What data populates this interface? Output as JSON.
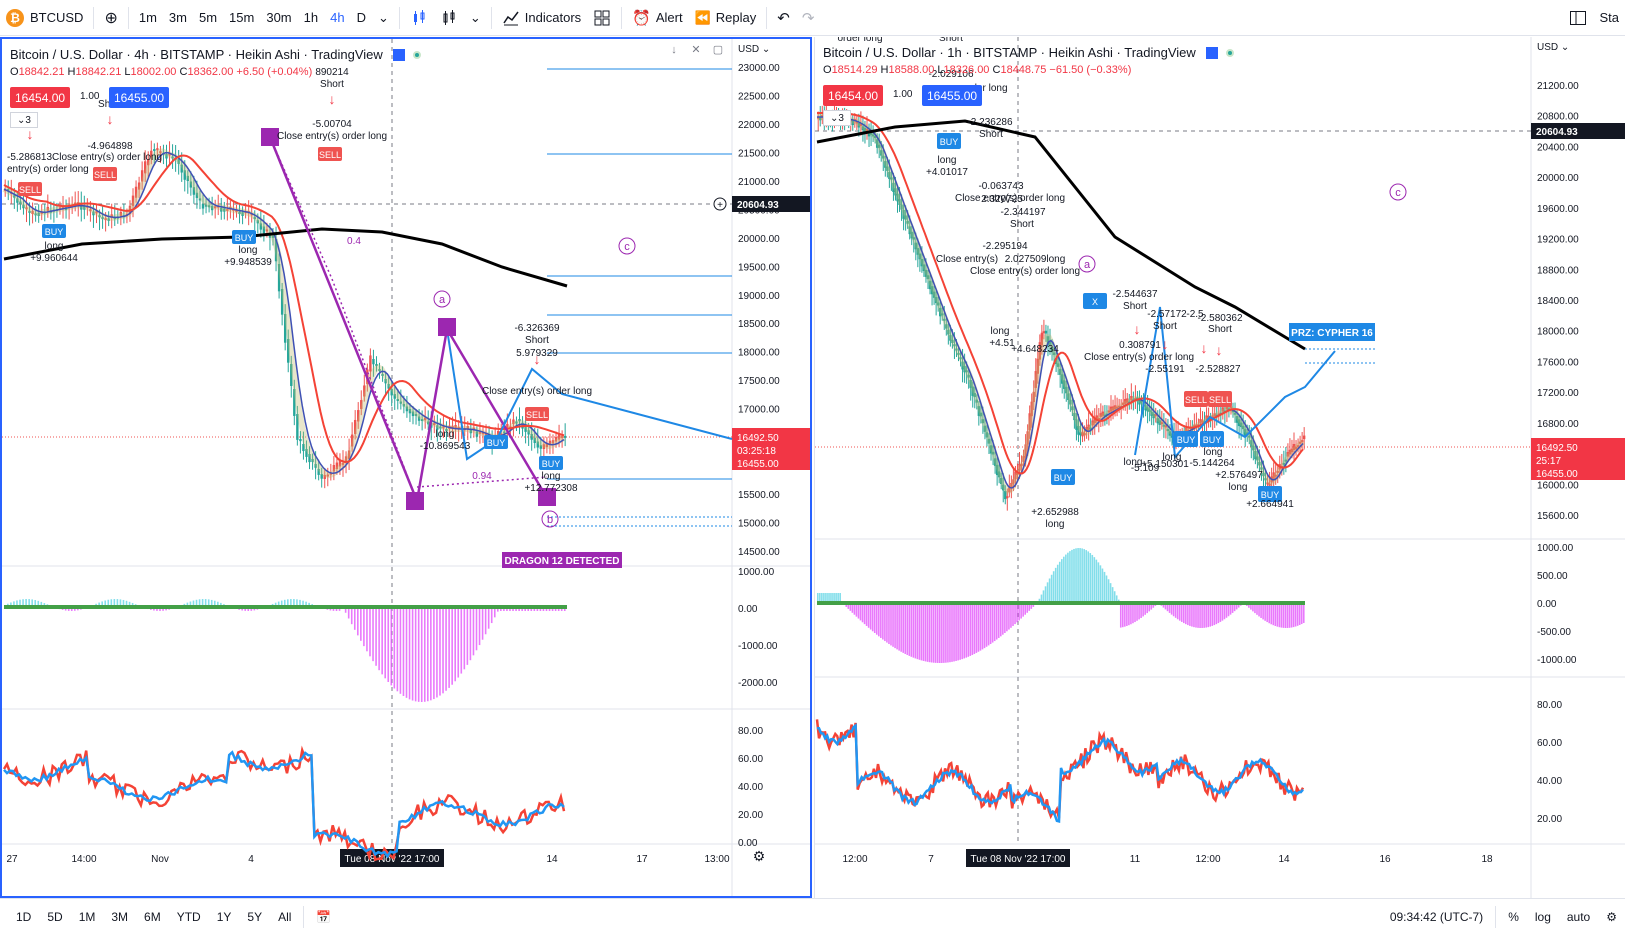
{
  "toolbar": {
    "symbol": "BTCUSD",
    "intervals": [
      "1m",
      "3m",
      "5m",
      "15m",
      "30m",
      "1h",
      "4h",
      "D"
    ],
    "active_interval": "4h",
    "indicators_label": "Indicators",
    "alert_label": "Alert",
    "replay_label": "Replay",
    "right_label": "Sta"
  },
  "bottom": {
    "ranges": [
      "1D",
      "5D",
      "1M",
      "3M",
      "6M",
      "YTD",
      "1Y",
      "5Y",
      "All"
    ],
    "clock": "09:34:42 (UTC-7)",
    "pct": "%",
    "log": "log",
    "auto": "auto"
  },
  "left": {
    "title": "Bitcoin / U.S. Dollar · 4h · BITSTAMP · Heikin Ashi · TradingView",
    "ohlc": {
      "o": "18842.21",
      "h": "18842.21",
      "l": "18002.00",
      "c": "18362.00",
      "chg": "+6.50 (+0.04%)"
    },
    "sell_price": "16454.00",
    "spread": "1.00",
    "buy_price": "16455.00",
    "layers_count": "3",
    "currency": "USD",
    "price_ticks": [
      "23000.00",
      "22500.00",
      "22000.00",
      "21500.00",
      "21000.00",
      "20500.00",
      "20000.00",
      "19500.00",
      "19000.00",
      "18500.00",
      "18000.00",
      "17500.00",
      "17000.00",
      "16500.00",
      "16000.00",
      "15500.00",
      "15000.00",
      "14500.00"
    ],
    "crosshair_price": "20604.93",
    "last_price": "16492.50",
    "countdown": "03:25:18",
    "bid_price": "16455.00",
    "macd_ticks": [
      "1000.00",
      "0.00",
      "-1000.00",
      "-2000.00"
    ],
    "osc_ticks": [
      "80.00",
      "60.00",
      "40.00",
      "20.00",
      "0.00"
    ],
    "time_ticks": [
      "27",
      "14:00",
      "Nov",
      "4",
      "17",
      "13:00",
      "14"
    ],
    "time_cursor": "Tue 08 Nov '22   17:00",
    "pattern_label": "DRAGON 12 DETECTED",
    "annotations": [
      "-4.964898",
      "Short",
      "-5.286813Close entry(s) order long",
      "entry(s) order long",
      "long",
      "+9.960644",
      "long",
      "+9.948539",
      "-5.00704",
      "Close entry(s) order long",
      "890214",
      "Short",
      "-6.326369",
      "Short",
      "5.979329",
      "Close entry(s) order long",
      "long",
      "-10.869543",
      "long",
      "+12.772308",
      "0.94",
      "0.4"
    ],
    "wave_labels": [
      "a",
      "b",
      "c"
    ],
    "point_labels": [
      "A",
      "B",
      "B",
      "B"
    ],
    "signal_labels": [
      "BUY",
      "BUY",
      "BUY",
      "BUY",
      "SELL",
      "SELL",
      "SELL",
      "SELL"
    ]
  },
  "right": {
    "title": "Bitcoin / U.S. Dollar · 1h · BITSTAMP · Heikin Ashi · TradingView",
    "ohlc": {
      "o": "18514.29",
      "h": "18588.00",
      "l": "18326.00",
      "c": "18448.75",
      "chg": "−61.50 (−0.33%)"
    },
    "sell_price": "16454.00",
    "spread": "1.00",
    "buy_price": "16455.00",
    "layers_count": "3",
    "currency": "USD",
    "price_ticks": [
      "21200.00",
      "20800.00",
      "20400.00",
      "20000.00",
      "19600.00",
      "19200.00",
      "18800.00",
      "18400.00",
      "18000.00",
      "17600.00",
      "17200.00",
      "16800.00",
      "16400.00",
      "16000.00",
      "15600.00"
    ],
    "crosshair_price": "20604.93",
    "last_price": "16492.50",
    "countdown": "25:17",
    "bid_price": "16455.00",
    "macd_ticks": [
      "1000.00",
      "500.00",
      "0.00",
      "-500.00",
      "-1000.00"
    ],
    "osc_ticks": [
      "80.00",
      "60.00",
      "40.00",
      "20.00"
    ],
    "time_ticks": [
      "12:00",
      "7",
      "11",
      "12:00",
      "14",
      "16",
      "18"
    ],
    "time_cursor": "Tue 08 Nov '22   17:00",
    "pattern_label": "PRZ: CYPHER 16",
    "annotations": [
      "order long",
      "Short",
      "-2.029106",
      "order long",
      "-2.236286",
      "Short",
      "long",
      "+4.01017",
      "-0.063743",
      "Close entry(s) order long",
      "2.320725",
      "-2.344197",
      "Short",
      "-2.295194",
      "Close entry(s)",
      "2.027509long",
      "Close entry(s) order long",
      "long",
      "+4.51",
      "+4.648234",
      "-2.544637",
      "Short",
      "-2.57172",
      "Short",
      "-2.5",
      "-2.580362",
      "Short",
      "0.308791",
      "Close entry(s) order long",
      "-2.55191",
      "-2.528827",
      "long",
      "-5.109",
      "+5.150301",
      "long",
      "-5.144264",
      "long",
      "+2.576497",
      "long",
      "+2.652988",
      "long",
      "+2.664941"
    ],
    "wave_labels": [
      "a",
      "c"
    ],
    "signal_labels": [
      "BUY",
      "BUY",
      "BUY",
      "BUY",
      "BUY",
      "X",
      "SELL",
      "SELL"
    ]
  },
  "colors": {
    "up": "#26a69a",
    "down": "#ef5350",
    "blue": "#2962ff",
    "purple": "#9c27b0",
    "ema_black": "#000000",
    "ema_red": "#e91e63",
    "ema_blue": "#3f51b5",
    "macd_pos": "#4dd0e1",
    "macd_neg": "#e040fb",
    "rsi_red": "#f44336",
    "rsi_blue": "#2196f3",
    "pattern_blue": "#1e88e5"
  }
}
